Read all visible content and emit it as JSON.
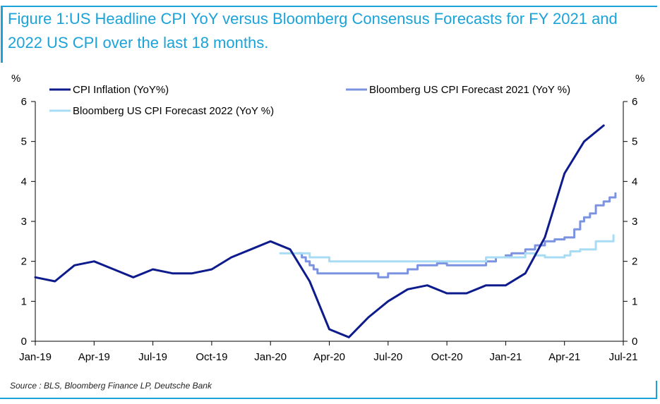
{
  "chart_data": {
    "type": "line",
    "title": "Figure 1:US Headline CPI YoY versus Bloomberg Consensus Forecasts for FY 2021 and 2022 US CPI over the last 18 months.",
    "ylabel_left": "%",
    "ylabel_right": "%",
    "ylim": [
      0,
      6
    ],
    "yticks": [
      0,
      1,
      2,
      3,
      4,
      5,
      6
    ],
    "xlim": [
      0,
      30
    ],
    "xticks": [
      {
        "x": 0,
        "label": "Jan-19"
      },
      {
        "x": 3,
        "label": "Apr-19"
      },
      {
        "x": 6,
        "label": "Jul-19"
      },
      {
        "x": 9,
        "label": "Oct-19"
      },
      {
        "x": 12,
        "label": "Jan-20"
      },
      {
        "x": 15,
        "label": "Apr-20"
      },
      {
        "x": 18,
        "label": "Jul-20"
      },
      {
        "x": 21,
        "label": "Oct-20"
      },
      {
        "x": 24,
        "label": "Jan-21"
      },
      {
        "x": 27,
        "label": "Apr-21"
      },
      {
        "x": 30,
        "label": "Jul-21"
      }
    ],
    "grid": false,
    "legend": "top",
    "series": [
      {
        "name": "CPI Inflation (YoY%)",
        "color": "#0d1b8c",
        "step": false,
        "x": [
          0,
          1,
          2,
          3,
          4,
          5,
          6,
          7,
          8,
          9,
          10,
          11,
          12,
          13,
          14,
          15,
          16,
          17,
          18,
          19,
          20,
          21,
          22,
          23,
          24,
          25,
          26,
          27,
          28,
          29
        ],
        "y": [
          1.6,
          1.5,
          1.9,
          2.0,
          1.8,
          1.6,
          1.8,
          1.7,
          1.7,
          1.8,
          2.1,
          2.3,
          2.5,
          2.3,
          1.5,
          0.3,
          0.1,
          0.6,
          1.0,
          1.3,
          1.4,
          1.2,
          1.2,
          1.4,
          1.4,
          1.7,
          2.6,
          4.2,
          5.0,
          5.4
        ]
      },
      {
        "name": "Bloomberg US CPI  Forecast 2021 (YoY %)",
        "color": "#7b93e0",
        "step": true,
        "x": [
          13.4,
          13.6,
          13.8,
          14.0,
          14.2,
          14.4,
          15.0,
          16.0,
          17.0,
          17.5,
          18.0,
          18.5,
          19.0,
          19.5,
          20.0,
          20.5,
          21.0,
          22.0,
          23.0,
          23.5,
          24.0,
          24.3,
          25.0,
          25.5,
          26.0,
          26.5,
          27.0,
          27.5,
          27.8,
          28.0,
          28.3,
          28.6,
          29.0,
          29.3,
          29.6
        ],
        "y": [
          2.2,
          2.1,
          2.0,
          1.9,
          1.8,
          1.7,
          1.7,
          1.7,
          1.7,
          1.6,
          1.7,
          1.7,
          1.8,
          1.9,
          1.9,
          1.95,
          1.9,
          1.9,
          2.0,
          2.1,
          2.15,
          2.2,
          2.3,
          2.4,
          2.5,
          2.55,
          2.6,
          2.8,
          3.0,
          3.1,
          3.2,
          3.4,
          3.5,
          3.6,
          3.7
        ]
      },
      {
        "name": "Bloomberg US CPI  Forecast 2022 (YoY %)",
        "color": "#a8dcf5",
        "step": true,
        "x": [
          12.5,
          13.0,
          14.0,
          15.0,
          16.0,
          17.0,
          18.0,
          19.0,
          20.0,
          21.0,
          22.0,
          23.0,
          24.0,
          25.0,
          25.5,
          26.0,
          26.5,
          27.0,
          27.3,
          27.8,
          28.2,
          28.6,
          29.0,
          29.5
        ],
        "y": [
          2.2,
          2.2,
          2.1,
          2.0,
          2.0,
          2.0,
          2.0,
          2.0,
          2.0,
          2.0,
          2.0,
          2.1,
          2.1,
          2.2,
          2.15,
          2.1,
          2.1,
          2.15,
          2.25,
          2.3,
          2.3,
          2.5,
          2.5,
          2.65
        ]
      }
    ]
  },
  "source": "Source : BLS, Bloomberg Finance LP, Deutsche Bank"
}
